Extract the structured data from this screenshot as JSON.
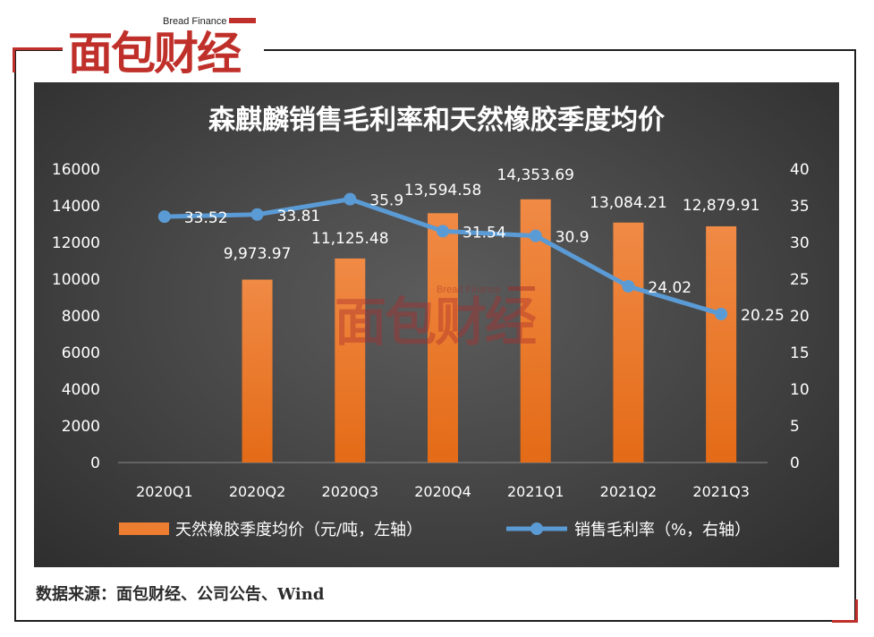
{
  "branding": {
    "logo_text": "面包财经",
    "logo_small": "Bread Finance",
    "watermark_text": "面包财经",
    "watermark_small": "Bread Finance"
  },
  "source_note": "数据来源：面包财经、公司公告、Wind",
  "colors": {
    "bar": "#ed7d31",
    "line": "#5b9bd5",
    "axis_text": "#ffffff",
    "brand_red": "#c0302a"
  },
  "chart_data": {
    "type": "bar+line",
    "title": "森麒麟销售毛利率和天然橡胶季度均价",
    "categories": [
      "2020Q1",
      "2020Q2",
      "2020Q3",
      "2020Q4",
      "2021Q1",
      "2021Q2",
      "2021Q3"
    ],
    "series": [
      {
        "name": "天然橡胶季度均价（元/吨，左轴）",
        "type": "bar",
        "axis": "left",
        "values": [
          null,
          9973.97,
          11125.48,
          13594.58,
          14353.69,
          13084.21,
          12879.91
        ],
        "labels": [
          "",
          "9,973.97",
          "11,125.48",
          "13,594.58",
          "14,353.69",
          "13,084.21",
          "12,879.91"
        ]
      },
      {
        "name": "销售毛利率（%，右轴）",
        "type": "line",
        "axis": "right",
        "values": [
          33.52,
          33.81,
          35.9,
          31.54,
          30.9,
          24.02,
          20.25
        ],
        "labels": [
          "33.52",
          "33.81",
          "35.9",
          "31.54",
          "30.9",
          "24.02",
          "20.25"
        ]
      }
    ],
    "y_left": {
      "min": 0,
      "max": 16000,
      "ticks": [
        "0",
        "2000",
        "4000",
        "6000",
        "8000",
        "10000",
        "12000",
        "14000",
        "16000"
      ]
    },
    "y_right": {
      "min": 0,
      "max": 40,
      "ticks": [
        "0",
        "5",
        "10",
        "15",
        "20",
        "25",
        "30",
        "35",
        "40"
      ]
    },
    "grid": false,
    "legend_position": "bottom"
  }
}
